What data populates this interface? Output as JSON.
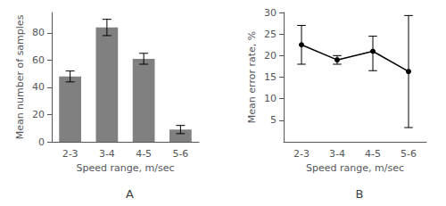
{
  "chart_data": [
    {
      "type": "bar",
      "categories": [
        "2-3",
        "3-4",
        "4-5",
        "5-6"
      ],
      "values": [
        48,
        84,
        61,
        9
      ],
      "errors": [
        4.0,
        6.0,
        4.0,
        3.0
      ],
      "color": "#808080",
      "ylabel": "Mean number of samples",
      "xlabel": "Speed range, m/sec",
      "annotation": "A",
      "ylim": [
        0,
        95
      ],
      "yticks": [
        0,
        20,
        40,
        60,
        80
      ],
      "grid": false
    },
    {
      "type": "line",
      "categories": [
        "2-3",
        "3-4",
        "4-5",
        "5-6"
      ],
      "values": [
        22.5,
        19.0,
        21.0,
        16.3
      ],
      "errors_upper": [
        4.5,
        1.0,
        3.5,
        13.0
      ],
      "errors_lower": [
        4.5,
        1.0,
        4.5,
        13.0
      ],
      "color": "#000000",
      "marker": "circle",
      "line_style": "solid",
      "ylabel": "Mean error rate, %",
      "xlabel": "Speed range, m/sec",
      "annotation": "B",
      "ylim": [
        0,
        30
      ],
      "yticks": [
        5,
        10,
        15,
        20,
        25,
        30
      ],
      "grid": false
    }
  ]
}
